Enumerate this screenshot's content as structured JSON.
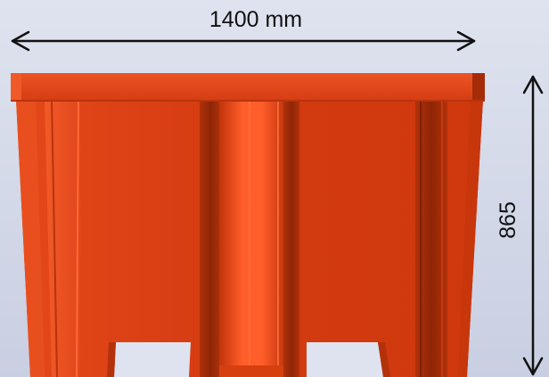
{
  "dimensions": {
    "width_label": "1400 mm",
    "height_label": "865"
  },
  "colors": {
    "background_top": "#dfe3ef",
    "background_bottom": "#c9cfe2",
    "container_body": "#d43c12",
    "container_rim": "#e2461a",
    "rib_dark": "#9a2a08",
    "rib_light": "#ff5a26",
    "arrow": "#111111"
  }
}
